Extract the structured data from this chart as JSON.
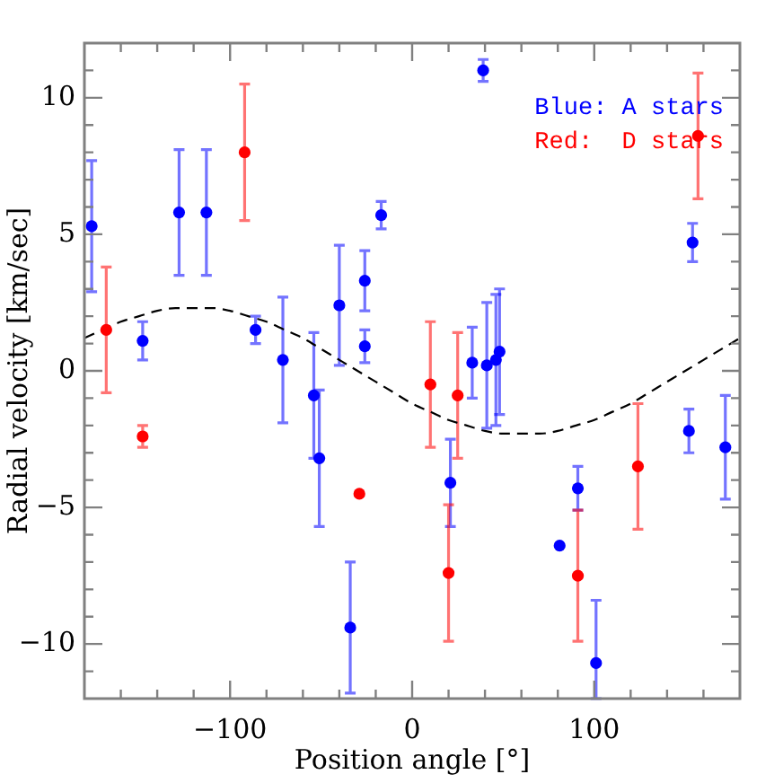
{
  "chart_data": {
    "type": "scatter",
    "xlabel": "Position angle [°]",
    "ylabel": "Radial velocity [km/sec]",
    "xlim": [
      -180,
      180
    ],
    "ylim": [
      -12,
      12
    ],
    "xticks": [
      {
        "value": -160,
        "label": null
      },
      {
        "value": -140,
        "label": null
      },
      {
        "value": -120,
        "label": null
      },
      -100,
      {
        "value": -80,
        "label": null
      },
      {
        "value": -60,
        "label": null
      },
      {
        "value": -40,
        "label": null
      },
      {
        "value": -20,
        "label": null
      },
      0,
      {
        "value": 20,
        "label": null
      },
      {
        "value": 40,
        "label": null
      },
      {
        "value": 60,
        "label": null
      },
      {
        "value": 80,
        "label": null
      },
      100,
      {
        "value": 120,
        "label": null
      },
      {
        "value": 140,
        "label": null
      },
      {
        "value": 160,
        "label": null
      }
    ],
    "yticks": [
      {
        "value": -11,
        "label": null
      },
      -10,
      {
        "value": -9,
        "label": null
      },
      {
        "value": -8,
        "label": null
      },
      {
        "value": -7,
        "label": null
      },
      {
        "value": -6,
        "label": null
      },
      -5,
      {
        "value": -4,
        "label": null
      },
      {
        "value": -3,
        "label": null
      },
      {
        "value": -2,
        "label": null
      },
      {
        "value": -1,
        "label": null
      },
      0,
      {
        "value": 1,
        "label": null
      },
      {
        "value": 2,
        "label": null
      },
      {
        "value": 3,
        "label": null
      },
      {
        "value": 4,
        "label": null
      },
      5,
      {
        "value": 6,
        "label": null
      },
      {
        "value": 7,
        "label": null
      },
      {
        "value": 8,
        "label": null
      },
      {
        "value": 9,
        "label": null
      },
      10,
      {
        "value": 11,
        "label": null
      }
    ],
    "legend": "top right",
    "marker": "circle",
    "series": [
      {
        "name": "Blue: A stars",
        "color": "#0000ff",
        "x": [
          -176,
          -148,
          -128,
          -113,
          -86,
          -71,
          -54,
          -51,
          -40,
          -34,
          -26,
          -26,
          -17,
          21,
          33,
          39,
          41,
          46,
          48,
          81,
          91,
          101,
          152,
          154,
          172
        ],
        "values": [
          5.3,
          1.1,
          5.8,
          5.8,
          1.5,
          0.4,
          -0.9,
          -3.2,
          2.4,
          -9.4,
          3.3,
          0.9,
          5.7,
          -4.1,
          0.3,
          11.0,
          0.2,
          0.4,
          0.7,
          -6.4,
          -4.3,
          -10.7,
          -2.2,
          4.7,
          -2.8
        ],
        "errors": [
          2.4,
          0.7,
          2.3,
          2.3,
          0.5,
          2.3,
          2.3,
          2.5,
          2.2,
          2.4,
          1.1,
          0.6,
          0.5,
          1.6,
          1.3,
          0.4,
          2.3,
          2.4,
          2.3,
          null,
          0.8,
          [
            -12,
            -8.4
          ],
          0.8,
          0.7,
          1.9
        ]
      },
      {
        "name": "Red:  D stars",
        "color": "#ff0000",
        "x": [
          -168,
          -148,
          -92,
          -29,
          10,
          20,
          25,
          91,
          124,
          157
        ],
        "values": [
          1.5,
          -2.4,
          8.0,
          -4.5,
          -0.5,
          -7.4,
          -0.9,
          -7.5,
          -3.5,
          8.6
        ],
        "errors": [
          2.3,
          0.4,
          2.5,
          null,
          2.3,
          2.5,
          2.3,
          2.4,
          2.3,
          2.3
        ]
      },
      {
        "type": "line",
        "color": "#000000",
        "line_style": "dashed",
        "marker": "none",
        "x": [
          -180,
          -170,
          -160,
          -150,
          -140,
          -130,
          -120,
          -110,
          -100,
          -90,
          -80,
          -70,
          -60,
          -50,
          -40,
          -30,
          -20,
          -10,
          0,
          10,
          20,
          30,
          40,
          50,
          60,
          70,
          80,
          90,
          100,
          110,
          120,
          130,
          140,
          150,
          160,
          170,
          180
        ],
        "values": [
          1.2,
          1.5,
          1.8,
          2.0,
          2.2,
          2.3,
          2.3,
          2.3,
          2.2,
          2.0,
          1.8,
          1.5,
          1.2,
          0.8,
          0.4,
          0.0,
          -0.4,
          -0.8,
          -1.2,
          -1.5,
          -1.8,
          -2.0,
          -2.2,
          -2.3,
          -2.3,
          -2.3,
          -2.2,
          -2.0,
          -1.8,
          -1.5,
          -1.2,
          -0.8,
          -0.4,
          0.0,
          0.4,
          0.8,
          1.2
        ]
      }
    ]
  }
}
